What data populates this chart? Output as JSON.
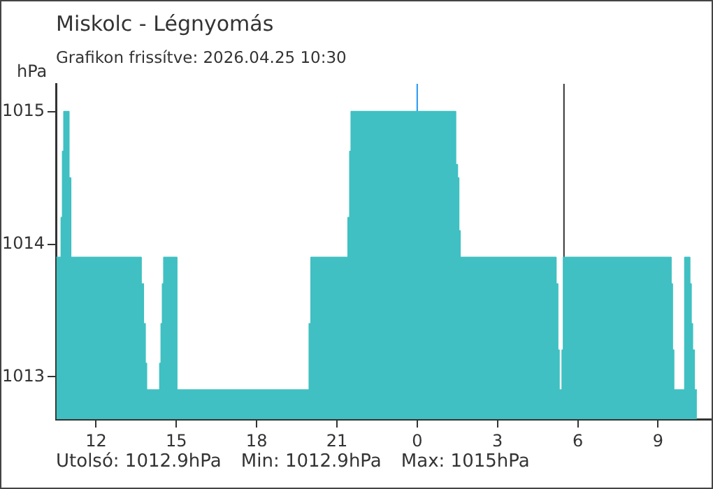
{
  "chart_data": {
    "type": "area",
    "title": "Miskolc - Légnyomás",
    "subtitle": "Grafikon frissítve: 2026.04.25 10:30",
    "ylabel": "hPa",
    "annotations": [
      "Utolsó: 1012.9hPa",
      "Min: 1012.9hPa",
      "Max: 1015hPa"
    ],
    "x": [
      "2026-04-24T10:31",
      "2026-04-24T10:42",
      "2026-04-24T10:42",
      "2026-04-24T10:45",
      "2026-04-24T10:45",
      "2026-04-24T10:48",
      "2026-04-24T10:48",
      "2026-04-24T10:59",
      "2026-04-24T10:59",
      "2026-04-24T11:03",
      "2026-04-24T11:03",
      "2026-04-24T13:41",
      "2026-04-24T13:41",
      "2026-04-24T13:46",
      "2026-04-24T13:46",
      "2026-04-24T13:50",
      "2026-04-24T13:50",
      "2026-04-24T13:53",
      "2026-04-24T13:53",
      "2026-04-24T14:23",
      "2026-04-24T14:23",
      "2026-04-24T14:26",
      "2026-04-24T14:26",
      "2026-04-24T14:29",
      "2026-04-24T14:29",
      "2026-04-24T14:32",
      "2026-04-24T14:32",
      "2026-04-24T15:01",
      "2026-04-24T15:01",
      "2026-04-24T19:58",
      "2026-04-24T19:58",
      "2026-04-24T20:02",
      "2026-04-24T20:02",
      "2026-04-24T21:25",
      "2026-04-24T21:25",
      "2026-04-24T21:29",
      "2026-04-24T21:29",
      "2026-04-24T21:32",
      "2026-04-24T21:32",
      "2026-04-25T01:26",
      "2026-04-25T01:26",
      "2026-04-25T01:30",
      "2026-04-25T01:30",
      "2026-04-25T01:33",
      "2026-04-25T01:33",
      "2026-04-25T01:36",
      "2026-04-25T01:36",
      "2026-04-25T05:11",
      "2026-04-25T05:11",
      "2026-04-25T05:15",
      "2026-04-25T05:15",
      "2026-04-25T05:18",
      "2026-04-25T05:18",
      "2026-04-25T05:25",
      "2026-04-25T05:25",
      "2026-04-25T05:28",
      "2026-04-25T05:28",
      "2026-04-25T09:29",
      "2026-04-25T09:29",
      "2026-04-25T09:32",
      "2026-04-25T09:32",
      "2026-04-25T09:35",
      "2026-04-25T09:35",
      "2026-04-25T10:00",
      "2026-04-25T10:00",
      "2026-04-25T10:11",
      "2026-04-25T10:11",
      "2026-04-25T10:14",
      "2026-04-25T10:14",
      "2026-04-25T10:17",
      "2026-04-25T10:17",
      "2026-04-25T10:21",
      "2026-04-25T10:21",
      "2026-04-25T10:27"
    ],
    "series": [
      {
        "color": "#40c0c2",
        "values": [
          1013.9,
          1013.9,
          1014.2,
          1014.2,
          1014.7,
          1014.7,
          1015.0,
          1015.0,
          1014.5,
          1014.5,
          1013.9,
          1013.9,
          1013.7,
          1013.7,
          1013.4,
          1013.4,
          1013.1,
          1013.1,
          1012.9,
          1012.9,
          1013.1,
          1013.1,
          1013.4,
          1013.4,
          1013.7,
          1013.7,
          1013.9,
          1013.9,
          1012.9,
          1012.9,
          1013.4,
          1013.4,
          1013.9,
          1013.9,
          1014.2,
          1014.2,
          1014.7,
          1014.7,
          1015.0,
          1015.0,
          1014.6,
          1014.6,
          1014.5,
          1014.5,
          1014.1,
          1014.1,
          1013.9,
          1013.9,
          1013.7,
          1013.7,
          1013.2,
          1013.2,
          1012.9,
          1012.9,
          1013.2,
          1013.2,
          1013.9,
          1013.9,
          1013.7,
          1013.7,
          1013.2,
          1013.2,
          1012.9,
          1012.9,
          1013.9,
          1013.9,
          1013.7,
          1013.7,
          1013.4,
          1013.4,
          1013.2,
          1013.2,
          1012.9,
          1012.9
        ]
      }
    ],
    "xlim": [
      "2026-04-24T10:30",
      "2026-04-25T11:00"
    ],
    "xticks": [
      {
        "value": "2026-04-24T12:00",
        "label": "12"
      },
      {
        "value": "2026-04-24T15:00",
        "label": "15"
      },
      {
        "value": "2026-04-24T18:00",
        "label": "18"
      },
      {
        "value": "2026-04-24T21:00",
        "label": "21"
      },
      {
        "value": "2026-04-25T00:00",
        "label": "0"
      },
      {
        "value": "2026-04-25T03:00",
        "label": "3"
      },
      {
        "value": "2026-04-25T06:00",
        "label": "6"
      },
      {
        "value": "2026-04-25T09:00",
        "label": "9"
      }
    ],
    "ylim": [
      1012.68,
      1015.21
    ],
    "yticks": [
      1013,
      1014,
      1015
    ],
    "ref_lines": [
      {
        "axis": "x",
        "value": "2026-04-25T00:00",
        "color": "#2196f3"
      },
      {
        "axis": "x",
        "value": "2026-04-25T05:29",
        "color": "#333333"
      }
    ],
    "grid": false,
    "legend": false
  }
}
